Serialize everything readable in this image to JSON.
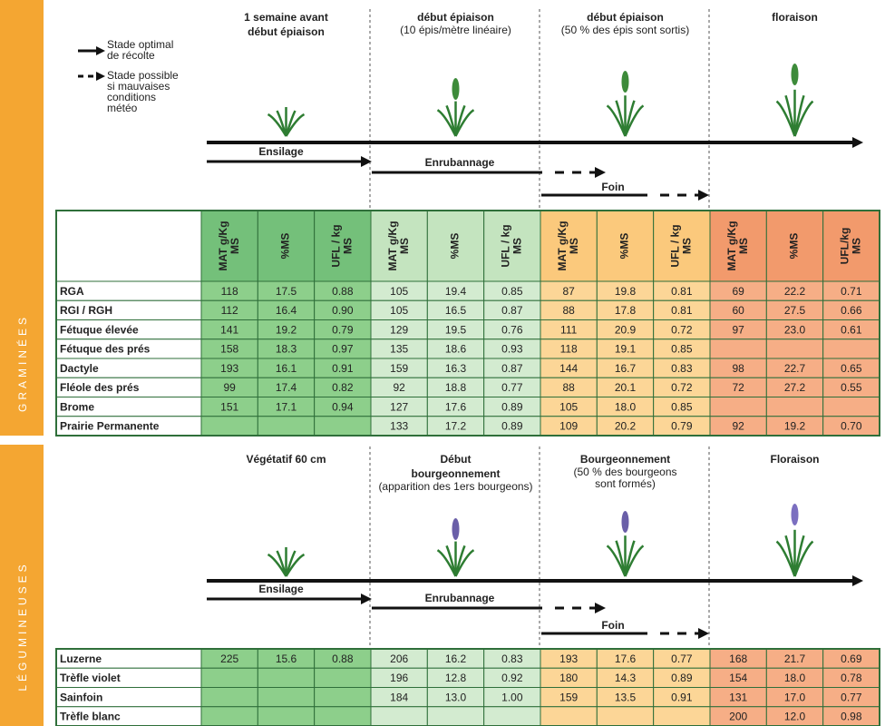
{
  "legend": {
    "optimal": [
      "Stade optimal",
      "de récolte"
    ],
    "possible": [
      "Stade possible",
      "si mauvaises",
      "conditions",
      "météo"
    ]
  },
  "sections": [
    {
      "label": "GRAMINÉES",
      "stages": [
        {
          "title": [
            "1 semaine avant",
            "début épiaison"
          ]
        },
        {
          "title": [
            "début épiaison"
          ],
          "note": [
            "(10 épis/mètre linéaire)"
          ]
        },
        {
          "title": [
            "début épiaison"
          ],
          "note": [
            "(50 % des épis sont sortis)"
          ]
        },
        {
          "title": [
            "floraison"
          ]
        }
      ],
      "methods": [
        "Ensilage",
        "Enrubannage",
        "Foin"
      ],
      "columns": [
        [
          "MAT g/Kg",
          "MS"
        ],
        [
          "%MS"
        ],
        [
          "UFL / kg",
          "MS"
        ],
        [
          "MAT g/Kg",
          "MS"
        ],
        [
          "%MS"
        ],
        [
          "UFL / kg",
          "MS"
        ],
        [
          "MAT g/Kg",
          "MS"
        ],
        [
          "%MS"
        ],
        [
          "UFL / kg",
          "MS"
        ],
        [
          "MAT g/Kg",
          "MS"
        ],
        [
          "%MS"
        ],
        [
          "UFL/kg",
          "MS"
        ]
      ],
      "rows": [
        [
          "RGA",
          "118",
          "17.5",
          "0.88",
          "105",
          "19.4",
          "0.85",
          "87",
          "19.8",
          "0.81",
          "69",
          "22.2",
          "0.71"
        ],
        [
          "RGI / RGH",
          "112",
          "16.4",
          "0.90",
          "105",
          "16.5",
          "0.87",
          "88",
          "17.8",
          "0.81",
          "60",
          "27.5",
          "0.66"
        ],
        [
          "Fétuque élevée",
          "141",
          "19.2",
          "0.79",
          "129",
          "19.5",
          "0.76",
          "111",
          "20.9",
          "0.72",
          "97",
          "23.0",
          "0.61"
        ],
        [
          "Fétuque des prés",
          "158",
          "18.3",
          "0.97",
          "135",
          "18.6",
          "0.93",
          "118",
          "19.1",
          "0.85",
          null,
          null,
          null
        ],
        [
          "Dactyle",
          "193",
          "16.1",
          "0.91",
          "159",
          "16.3",
          "0.87",
          "144",
          "16.7",
          "0.83",
          "98",
          "22.7",
          "0.65"
        ],
        [
          "Fléole des prés",
          "99",
          "17.4",
          "0.82",
          "92",
          "18.8",
          "0.77",
          "88",
          "20.1",
          "0.72",
          "72",
          "27.2",
          "0.55"
        ],
        [
          "Brome",
          "151",
          "17.1",
          "0.94",
          "127",
          "17.6",
          "0.89",
          "105",
          "18.0",
          "0.85",
          null,
          null,
          null
        ],
        [
          "Prairie Permanente",
          null,
          null,
          null,
          "133",
          "17.2",
          "0.89",
          "109",
          "20.2",
          "0.79",
          "92",
          "19.2",
          "0.70"
        ]
      ]
    },
    {
      "label": "LÉGUMINEUSES",
      "stages": [
        {
          "title": [
            "Végétatif 60 cm"
          ]
        },
        {
          "title": [
            "Début",
            "bourgeonnement"
          ],
          "note": [
            "(apparition des 1ers bourgeons)"
          ]
        },
        {
          "title": [
            "Bourgeonnement"
          ],
          "note": [
            "(50 % des bourgeons",
            "sont formés)"
          ]
        },
        {
          "title": [
            "Floraison"
          ]
        }
      ],
      "methods": [
        "Ensilage",
        "Enrubannage",
        "Foin"
      ],
      "rows": [
        [
          "Luzerne",
          "225",
          "15.6",
          "0.88",
          "206",
          "16.2",
          "0.83",
          "193",
          "17.6",
          "0.77",
          "168",
          "21.7",
          "0.69"
        ],
        [
          "Trèfle violet",
          null,
          null,
          null,
          "196",
          "12.8",
          "0.92",
          "180",
          "14.3",
          "0.89",
          "154",
          "18.0",
          "0.78"
        ],
        [
          "Sainfoin",
          null,
          null,
          null,
          "184",
          "13.0",
          "1.00",
          "159",
          "13.5",
          "0.91",
          "131",
          "17.0",
          "0.77"
        ],
        [
          "Trèfle blanc",
          null,
          null,
          null,
          null,
          null,
          null,
          null,
          null,
          null,
          "200",
          "12.0",
          "0.98"
        ]
      ]
    }
  ]
}
